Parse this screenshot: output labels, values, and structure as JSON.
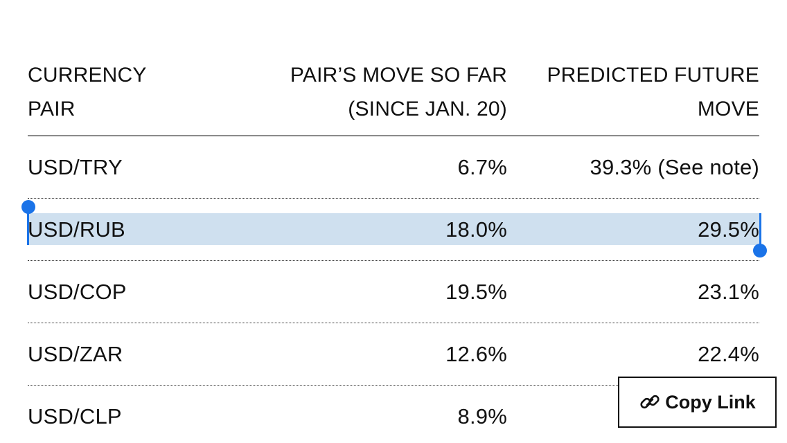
{
  "table": {
    "headers": {
      "col1": [
        "CURRENCY",
        "PAIR"
      ],
      "col2": [
        "PAIR’S MOVE SO FAR",
        "(SINCE JAN. 20)"
      ],
      "col3": [
        "PREDICTED FUTURE",
        "MOVE"
      ]
    },
    "rows": [
      {
        "pair": "USD/TRY",
        "move_so_far": "6.7%",
        "predicted": "39.3% (See note)"
      },
      {
        "pair": "USD/RUB",
        "move_so_far": "18.0%",
        "predicted": "29.5%"
      },
      {
        "pair": "USD/COP",
        "move_so_far": "19.5%",
        "predicted": "23.1%"
      },
      {
        "pair": "USD/ZAR",
        "move_so_far": "12.6%",
        "predicted": "22.4%"
      },
      {
        "pair": "USD/CLP",
        "move_so_far": "8.9%",
        "predicted": ""
      }
    ]
  },
  "selection": {
    "selected_row": "USD/RUB",
    "color": "#1a73e8",
    "highlight_color": "#cfe0ef"
  },
  "copy_link": {
    "label": "Copy Link",
    "icon": "link-icon"
  }
}
